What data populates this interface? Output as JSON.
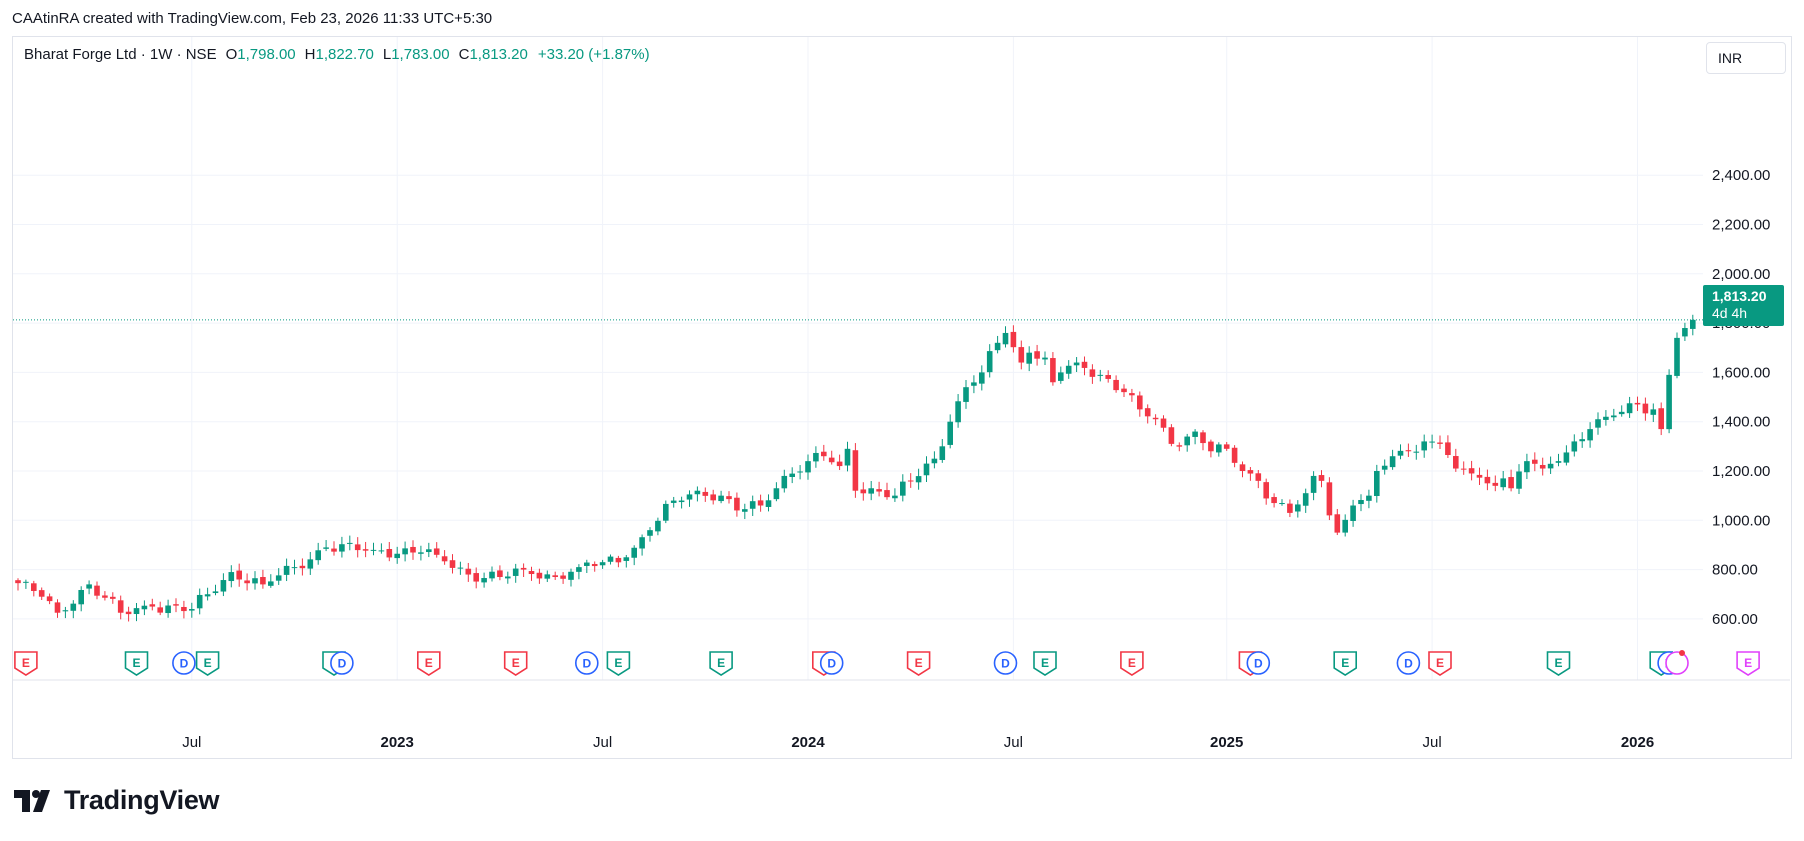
{
  "caption": "CAAtinRA created with TradingView.com, Feb 23, 2026 11:33 UTC+5:30",
  "legend": {
    "symbol": "Bharat Forge Ltd · 1W · NSE",
    "open_label": "O",
    "open": "1,798.00",
    "high_label": "H",
    "high": "1,822.70",
    "low_label": "L",
    "low": "1,783.00",
    "close_label": "C",
    "close": "1,813.20",
    "change": "+33.20 (+1.87%)"
  },
  "currency": "INR",
  "price_tag": {
    "price": "1,813.20",
    "countdown": "4d 4h"
  },
  "brand": {
    "name": "TradingView"
  },
  "colors": {
    "up": "#089981",
    "down": "#f23645",
    "dividend": "#2962ff",
    "split": "#e040fb",
    "grid": "#f0f3fa"
  },
  "chart_data": {
    "type": "candlestick",
    "interval": "1W",
    "ylim": [
      520,
      2560
    ],
    "y_ticks": [
      600,
      800,
      1000,
      1200,
      1400,
      1600,
      1800,
      2000,
      2200,
      2400
    ],
    "y_tick_labels": [
      "600.00",
      "800.00",
      "1,000.00",
      "1,200.00",
      "1,400.00",
      "1,600.00",
      "1,800.00",
      "2,000.00",
      "2,200.00",
      "2,400.00"
    ],
    "x_ticks": [
      {
        "label": "Jul",
        "week": 22,
        "bold": false
      },
      {
        "label": "2023",
        "week": 48,
        "bold": true
      },
      {
        "label": "Jul",
        "week": 74,
        "bold": false
      },
      {
        "label": "2024",
        "week": 100,
        "bold": true
      },
      {
        "label": "Jul",
        "week": 126,
        "bold": false
      },
      {
        "label": "2025",
        "week": 153,
        "bold": true
      },
      {
        "label": "Jul",
        "week": 179,
        "bold": false
      },
      {
        "label": "2026",
        "week": 205,
        "bold": true
      }
    ],
    "last_price": 1813.2,
    "close_anchors": [
      [
        0,
        745
      ],
      [
        3,
        690
      ],
      [
        5,
        625
      ],
      [
        9,
        740
      ],
      [
        13,
        625
      ],
      [
        17,
        650
      ],
      [
        22,
        640
      ],
      [
        24,
        700
      ],
      [
        27,
        790
      ],
      [
        31,
        740
      ],
      [
        35,
        810
      ],
      [
        39,
        890
      ],
      [
        45,
        880
      ],
      [
        51,
        870
      ],
      [
        53,
        860
      ],
      [
        57,
        780
      ],
      [
        61,
        770
      ],
      [
        64,
        800
      ],
      [
        68,
        770
      ],
      [
        71,
        810
      ],
      [
        74,
        830
      ],
      [
        77,
        850
      ],
      [
        80,
        960
      ],
      [
        83,
        1080
      ],
      [
        86,
        1120
      ],
      [
        89,
        1100
      ],
      [
        91,
        1040
      ],
      [
        94,
        1060
      ],
      [
        97,
        1180
      ],
      [
        100,
        1240
      ],
      [
        102,
        1260
      ],
      [
        104,
        1220
      ],
      [
        105,
        1290
      ],
      [
        106,
        1120
      ],
      [
        108,
        1130
      ],
      [
        111,
        1100
      ],
      [
        113,
        1160
      ],
      [
        116,
        1250
      ],
      [
        118,
        1400
      ],
      [
        120,
        1540
      ],
      [
        122,
        1600
      ],
      [
        124,
        1720
      ],
      [
        125,
        1760
      ],
      [
        127,
        1640
      ],
      [
        128,
        1680
      ],
      [
        130,
        1660
      ],
      [
        131,
        1560
      ],
      [
        132,
        1600
      ],
      [
        134,
        1640
      ],
      [
        137,
        1590
      ],
      [
        140,
        1520
      ],
      [
        142,
        1450
      ],
      [
        144,
        1410
      ],
      [
        146,
        1310
      ],
      [
        149,
        1360
      ],
      [
        151,
        1280
      ],
      [
        153,
        1290
      ],
      [
        155,
        1200
      ],
      [
        157,
        1160
      ],
      [
        159,
        1070
      ],
      [
        161,
        1030
      ],
      [
        163,
        1110
      ],
      [
        164,
        1180
      ],
      [
        165,
        1160
      ],
      [
        166,
        1020
      ],
      [
        167,
        950
      ],
      [
        169,
        1060
      ],
      [
        171,
        1100
      ],
      [
        172,
        1200
      ],
      [
        174,
        1260
      ],
      [
        176,
        1280
      ],
      [
        178,
        1320
      ],
      [
        180,
        1310
      ],
      [
        182,
        1210
      ],
      [
        184,
        1190
      ],
      [
        186,
        1150
      ],
      [
        188,
        1170
      ],
      [
        189,
        1130
      ],
      [
        191,
        1240
      ],
      [
        193,
        1210
      ],
      [
        195,
        1240
      ],
      [
        197,
        1320
      ],
      [
        199,
        1370
      ],
      [
        201,
        1420
      ],
      [
        203,
        1440
      ],
      [
        205,
        1470
      ],
      [
        207,
        1450
      ],
      [
        208,
        1370
      ],
      [
        209,
        1590
      ],
      [
        210,
        1740
      ],
      [
        211,
        1780
      ],
      [
        212,
        1813.2
      ]
    ],
    "events": [
      {
        "type": "E",
        "week": 1,
        "color": "down"
      },
      {
        "type": "E",
        "week": 15,
        "color": "up"
      },
      {
        "type": "D",
        "week": 21,
        "color": "dividend"
      },
      {
        "type": "E",
        "week": 24,
        "color": "up"
      },
      {
        "type": "E",
        "week": 40,
        "color": "up"
      },
      {
        "type": "D",
        "week": 41,
        "color": "dividend"
      },
      {
        "type": "E",
        "week": 52,
        "color": "down"
      },
      {
        "type": "E",
        "week": 63,
        "color": "down"
      },
      {
        "type": "D",
        "week": 72,
        "color": "dividend"
      },
      {
        "type": "E",
        "week": 76,
        "color": "up"
      },
      {
        "type": "E",
        "week": 89,
        "color": "up"
      },
      {
        "type": "E",
        "week": 102,
        "color": "down"
      },
      {
        "type": "D",
        "week": 103,
        "color": "dividend"
      },
      {
        "type": "E",
        "week": 114,
        "color": "down"
      },
      {
        "type": "D",
        "week": 125,
        "color": "dividend"
      },
      {
        "type": "E",
        "week": 130,
        "color": "up"
      },
      {
        "type": "E",
        "week": 141,
        "color": "down"
      },
      {
        "type": "E",
        "week": 156,
        "color": "down"
      },
      {
        "type": "D",
        "week": 157,
        "color": "dividend"
      },
      {
        "type": "E",
        "week": 168,
        "color": "up"
      },
      {
        "type": "D",
        "week": 176,
        "color": "dividend"
      },
      {
        "type": "E",
        "week": 180,
        "color": "down"
      },
      {
        "type": "E",
        "week": 195,
        "color": "up"
      },
      {
        "type": "E",
        "week": 208,
        "color": "up"
      },
      {
        "type": "D",
        "week": 209,
        "color": "dividend"
      },
      {
        "type": "S",
        "week": 210,
        "color": "split"
      },
      {
        "type": "E",
        "week": 219,
        "color": "split"
      }
    ]
  }
}
